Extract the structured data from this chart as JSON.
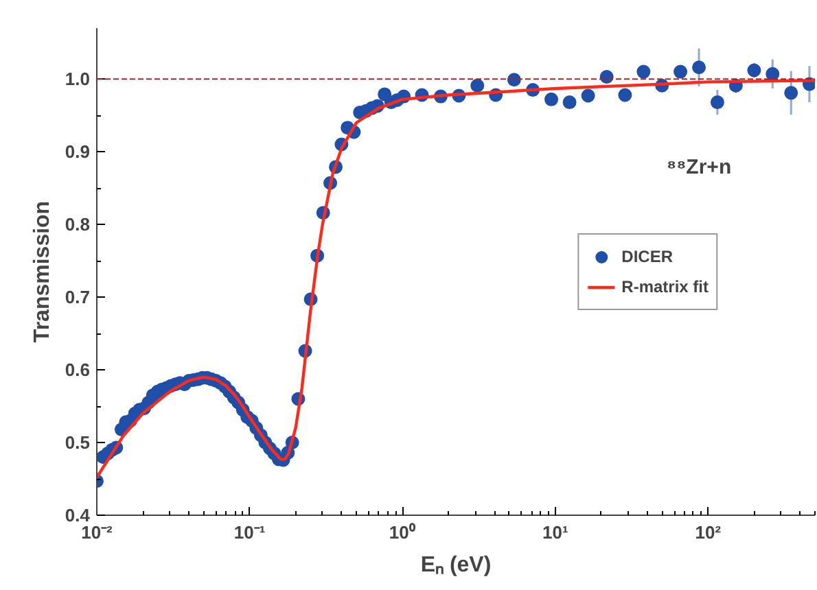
{
  "chart_data": {
    "type": "scatter",
    "xlabel": "Eₙ (eV)",
    "ylabel": "Transmission",
    "log": "x",
    "xlim": [
      0.01,
      500
    ],
    "ylim": [
      0.4,
      1.07
    ],
    "xticks": [
      {
        "value": 0.01,
        "label": "10⁻²"
      },
      {
        "value": 0.1,
        "label": "10⁻¹"
      },
      {
        "value": 1,
        "label": "10⁰"
      },
      {
        "value": 10,
        "label": "10¹"
      },
      {
        "value": 100,
        "label": "10²"
      }
    ],
    "yticks": [
      0.4,
      0.5,
      0.6,
      0.7,
      0.8,
      0.9,
      {
        "value": 1,
        "label": "1.0"
      }
    ],
    "grid": false,
    "legend": "right",
    "annotations": [
      "⁸⁸Zr+n"
    ],
    "ref_lines": [
      {
        "axis": "y",
        "value": 1.0,
        "color": "#a0282a",
        "line_style": "dashed"
      }
    ],
    "series": [
      {
        "name": "DICER",
        "color": "#1f4fa8",
        "marker": "circle",
        "x": [
          0.01,
          0.011,
          0.0118,
          0.0126,
          0.0134,
          0.0145,
          0.0155,
          0.0166,
          0.0178,
          0.019,
          0.0204,
          0.0218,
          0.0233,
          0.025,
          0.0267,
          0.0286,
          0.0306,
          0.0327,
          0.035,
          0.0375,
          0.0401,
          0.0429,
          0.0459,
          0.0491,
          0.0526,
          0.0562,
          0.0602,
          0.0644,
          0.0689,
          0.0737,
          0.0789,
          0.0844,
          0.0903,
          0.0966,
          0.1034,
          0.1106,
          0.1184,
          0.1266,
          0.1355,
          0.145,
          0.155,
          0.166,
          0.178,
          0.19,
          0.208,
          0.231,
          0.251,
          0.277,
          0.303,
          0.337,
          0.366,
          0.399,
          0.437,
          0.481,
          0.527,
          0.577,
          0.63,
          0.686,
          0.764,
          0.843,
          0.923,
          1.02,
          1.34,
          1.78,
          2.34,
          3.09,
          4.08,
          5.38,
          7.13,
          9.42,
          12.4,
          16.4,
          21.7,
          28.6,
          37.8,
          49.9,
          65.9,
          87.1,
          115,
          152,
          200,
          264,
          349,
          460
        ],
        "values": [
          0.447,
          0.48,
          0.485,
          0.49,
          0.493,
          0.518,
          0.528,
          0.53,
          0.54,
          0.545,
          0.547,
          0.555,
          0.565,
          0.57,
          0.573,
          0.575,
          0.578,
          0.58,
          0.582,
          0.58,
          0.585,
          0.586,
          0.587,
          0.589,
          0.589,
          0.587,
          0.585,
          0.582,
          0.577,
          0.57,
          0.562,
          0.555,
          0.545,
          0.535,
          0.53,
          0.52,
          0.51,
          0.5,
          0.492,
          0.485,
          0.477,
          0.476,
          0.486,
          0.5,
          0.56,
          0.626,
          0.697,
          0.757,
          0.816,
          0.857,
          0.879,
          0.91,
          0.933,
          0.927,
          0.954,
          0.956,
          0.96,
          0.963,
          0.979,
          0.968,
          0.971,
          0.976,
          0.978,
          0.976,
          0.977,
          0.991,
          0.978,
          0.999,
          0.985,
          0.972,
          0.968,
          0.977,
          1.003,
          0.978,
          1.01,
          0.991,
          1.01,
          1.016,
          0.968,
          0.991,
          1.012,
          1.007,
          0.981,
          0.993
        ],
        "errors": [
          null,
          null,
          null,
          null,
          null,
          null,
          null,
          null,
          null,
          null,
          null,
          null,
          null,
          null,
          null,
          null,
          null,
          null,
          null,
          null,
          null,
          null,
          null,
          null,
          null,
          null,
          null,
          null,
          null,
          null,
          null,
          null,
          null,
          null,
          null,
          null,
          null,
          null,
          null,
          null,
          null,
          null,
          null,
          null,
          null,
          null,
          null,
          null,
          null,
          null,
          null,
          null,
          null,
          null,
          null,
          null,
          null,
          null,
          null,
          null,
          null,
          null,
          null,
          null,
          null,
          0.006,
          0.005,
          0.005,
          0.006,
          0.006,
          0.006,
          0.006,
          0.008,
          0.006,
          0.008,
          0.006,
          0.008,
          0.026,
          0.017,
          0.01,
          0.01,
          0.02,
          0.03,
          0.025
        ]
      },
      {
        "name": "R-matrix fit",
        "type": "line",
        "color": "#ff2a1a",
        "line_style": "solid",
        "marker": "none",
        "x": [
          0.01,
          0.015,
          0.02,
          0.03,
          0.04,
          0.05,
          0.06,
          0.07,
          0.08,
          0.09,
          0.1,
          0.12,
          0.14,
          0.16,
          0.17,
          0.18,
          0.2,
          0.22,
          0.25,
          0.28,
          0.3,
          0.35,
          0.4,
          0.5,
          0.7,
          1,
          2,
          5,
          10,
          50,
          100,
          500
        ],
        "values": [
          0.452,
          0.51,
          0.54,
          0.57,
          0.585,
          0.59,
          0.587,
          0.578,
          0.565,
          0.55,
          0.535,
          0.51,
          0.49,
          0.477,
          0.477,
          0.485,
          0.52,
          0.575,
          0.68,
          0.76,
          0.8,
          0.87,
          0.905,
          0.94,
          0.96,
          0.972,
          0.978,
          0.983,
          0.987,
          0.993,
          0.996,
          0.998
        ]
      }
    ]
  }
}
